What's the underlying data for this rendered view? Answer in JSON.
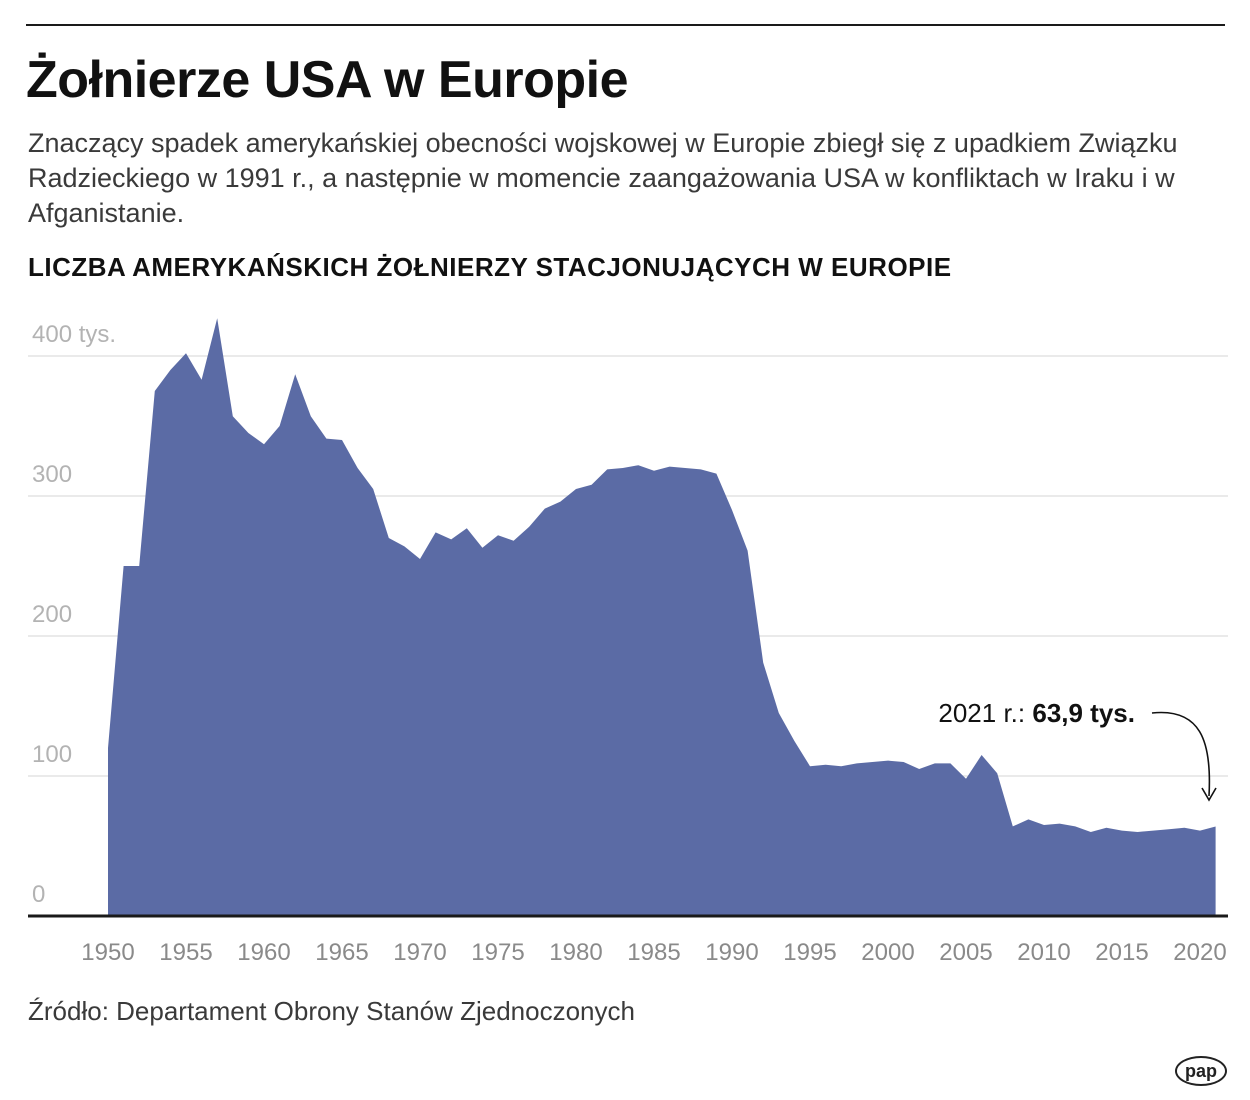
{
  "header": {
    "title": "Żołnierze USA w Europie",
    "subtitle": "Znaczący spadek amerykańskiej obecności wojskowej w Europie zbiegł się z upadkiem Związku Radzieckiego w 1991 r., a następnie w momencie zaangażowania USA w konfliktach w Iraku i w Afganistanie.",
    "chart_heading": "LICZBA AMERYKAŃSKICH ŻOŁNIERZY STACJONUJĄCYCH W EUROPIE"
  },
  "footer": {
    "source": "Źródło: Departament Obrony Stanów Zjednoczonych",
    "logo": "pap"
  },
  "colors": {
    "area_fill": "#5b6ba5",
    "grid": "#e3e3e3",
    "axis": "#1a1a1a"
  },
  "chart_data": {
    "type": "area",
    "title": "LICZBA AMERYKAŃSKICH ŻOŁNIERZY STACJONUJĄCYCH W EUROPIE",
    "xlabel": "",
    "ylabel": "",
    "xlim": [
      1949,
      2022
    ],
    "ylim": [
      0,
      400
    ],
    "y_ticks": [
      0,
      100,
      200,
      300,
      400
    ],
    "y_tick_labels": [
      "0",
      "100",
      "200",
      "300",
      "400 tys."
    ],
    "x_ticks": [
      1950,
      1955,
      1960,
      1965,
      1970,
      1975,
      1980,
      1985,
      1990,
      1995,
      2000,
      2005,
      2010,
      2015,
      2020
    ],
    "x_tick_labels": [
      "1950",
      "1955",
      "1960",
      "1965",
      "1970",
      "1975",
      "1980",
      "1985",
      "1990",
      "1995",
      "2000",
      "2005",
      "2010",
      "2015",
      "2020"
    ],
    "grid": true,
    "series": [
      {
        "x": [
          1950,
          1951,
          1952,
          1953,
          1954,
          1955,
          1956,
          1957,
          1958,
          1959,
          1960,
          1961,
          1962,
          1963,
          1964,
          1965,
          1966,
          1967,
          1968,
          1969,
          1970,
          1971,
          1972,
          1973,
          1974,
          1975,
          1976,
          1977,
          1978,
          1979,
          1980,
          1981,
          1982,
          1983,
          1984,
          1985,
          1986,
          1987,
          1988,
          1989,
          1990,
          1991,
          1992,
          1993,
          1994,
          1995,
          1996,
          1997,
          1998,
          1999,
          2000,
          2001,
          2002,
          2003,
          2004,
          2005,
          2006,
          2007,
          2008,
          2009,
          2010,
          2011,
          2012,
          2013,
          2014,
          2015,
          2016,
          2017,
          2018,
          2019,
          2020,
          2021
        ],
        "values": [
          120,
          250,
          250,
          375,
          390,
          402,
          383,
          427,
          357,
          345,
          337,
          350,
          387,
          357,
          341,
          340,
          320,
          305,
          270,
          264,
          255,
          274,
          269,
          277,
          263,
          272,
          268,
          278,
          291,
          296,
          305,
          308,
          319,
          320,
          322,
          318,
          321,
          320,
          319,
          316,
          290,
          261,
          181,
          145,
          125,
          107,
          108,
          107,
          109,
          110,
          111,
          110,
          105,
          109,
          109,
          98,
          115,
          102,
          64,
          69,
          65,
          66,
          64,
          60,
          63,
          61,
          60,
          61,
          62,
          63,
          61,
          63.9
        ]
      }
    ],
    "annotations": [
      {
        "label": "2021 r.: ",
        "value_label": "63,9 tys.",
        "x": 2021,
        "y": 63.9
      }
    ]
  }
}
